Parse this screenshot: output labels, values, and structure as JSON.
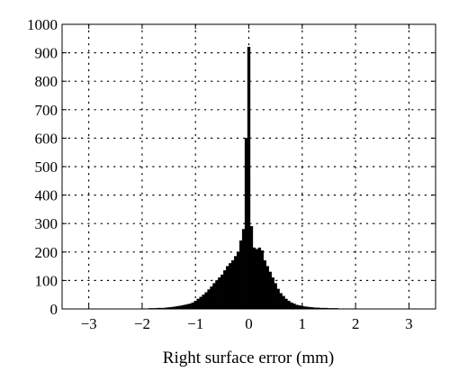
{
  "chart_data": {
    "type": "bar",
    "title": "",
    "xlabel": "Right surface error (mm)",
    "ylabel": "",
    "xlim": [
      -3.5,
      3.5
    ],
    "ylim": [
      0,
      1000
    ],
    "grid": true,
    "grid_style": "dotted",
    "bar_color": "#000000",
    "xticks": [
      -3,
      -2,
      -1,
      0,
      1,
      2,
      3
    ],
    "xtick_labels": [
      "−3",
      "−2",
      "−1",
      "0",
      "1",
      "2",
      "3"
    ],
    "yticks": [
      0,
      100,
      200,
      300,
      400,
      500,
      600,
      700,
      800,
      900,
      1000
    ],
    "ytick_labels": [
      "0",
      "100",
      "200",
      "300",
      "400",
      "500",
      "600",
      "700",
      "800",
      "900",
      "1000"
    ],
    "bin_width": 0.05,
    "x": [
      -2.0,
      -1.95,
      -1.9,
      -1.85,
      -1.8,
      -1.75,
      -1.7,
      -1.65,
      -1.6,
      -1.55,
      -1.5,
      -1.45,
      -1.4,
      -1.35,
      -1.3,
      -1.25,
      -1.2,
      -1.15,
      -1.1,
      -1.05,
      -1.0,
      -0.95,
      -0.9,
      -0.85,
      -0.8,
      -0.75,
      -0.7,
      -0.65,
      -0.6,
      -0.55,
      -0.5,
      -0.45,
      -0.4,
      -0.35,
      -0.3,
      -0.25,
      -0.2,
      -0.15,
      -0.1,
      -0.05,
      0.0,
      0.05,
      0.1,
      0.15,
      0.2,
      0.25,
      0.3,
      0.35,
      0.4,
      0.45,
      0.5,
      0.55,
      0.6,
      0.65,
      0.7,
      0.75,
      0.8,
      0.85,
      0.9,
      0.95,
      1.0,
      1.05,
      1.1,
      1.15,
      1.2,
      1.25,
      1.3,
      1.35,
      1.4,
      1.45,
      1.5,
      1.55,
      1.6,
      1.65,
      1.7,
      1.75,
      1.8,
      1.85,
      1.9,
      1.95,
      2.0
    ],
    "values": [
      1,
      1,
      1,
      2,
      2,
      2,
      3,
      3,
      3,
      4,
      5,
      6,
      7,
      9,
      10,
      12,
      14,
      16,
      18,
      22,
      28,
      35,
      42,
      50,
      58,
      68,
      78,
      90,
      100,
      110,
      120,
      135,
      150,
      160,
      170,
      185,
      200,
      240,
      280,
      600,
      920,
      290,
      215,
      210,
      215,
      205,
      170,
      150,
      130,
      110,
      90,
      70,
      55,
      45,
      35,
      28,
      22,
      18,
      14,
      12,
      10,
      8,
      7,
      6,
      5,
      4,
      4,
      3,
      3,
      3,
      2,
      2,
      2,
      2,
      1,
      1,
      1,
      1,
      1,
      1,
      1
    ]
  }
}
